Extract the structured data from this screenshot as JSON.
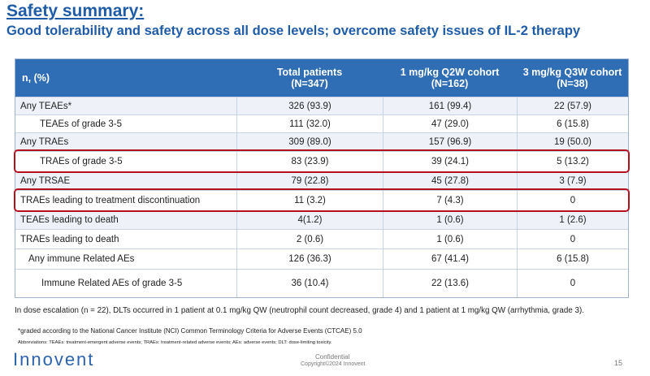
{
  "header": {
    "title": "Safety summary:",
    "subtitle": "Good tolerability and safety across all dose levels; overcome safety issues of IL-2 therapy"
  },
  "table": {
    "columns": [
      "n, (%)",
      [
        "Total patients",
        "(N=347)"
      ],
      [
        "1 mg/kg Q2W cohort",
        "(N=162)"
      ],
      [
        "3 mg/kg Q3W cohort",
        "(N=38)"
      ]
    ],
    "rows": [
      [
        "Any TEAEs*",
        "326 (93.9)",
        "161 (99.4)",
        "22 (57.9)"
      ],
      [
        "TEAEs of grade 3-5",
        "111 (32.0)",
        "47 (29.0)",
        "6 (15.8)"
      ],
      [
        "Any TRAEs",
        "309 (89.0)",
        "157 (96.9)",
        "19 (50.0)"
      ],
      [
        "TRAEs of grade 3-5",
        "83 (23.9)",
        "39 (24.1)",
        "5 (13.2)"
      ],
      [
        "Any TRSAE",
        "79 (22.8)",
        "45 (27.8)",
        "3 (7.9)"
      ],
      [
        "TRAEs leading to treatment discontinuation",
        "11 (3.2)",
        "7 (4.3)",
        "0"
      ],
      [
        "TEAEs leading to death",
        "4(1.2)",
        "1 (0.6)",
        "1 (2.6)"
      ],
      [
        "TRAEs leading to death",
        "2 (0.6)",
        "1 (0.6)",
        "0"
      ],
      [
        "Any immune Related AEs",
        "126 (36.3)",
        "67 (41.4)",
        "6 (15.8)"
      ],
      [
        "Immune Related AEs of grade 3-5",
        "36 (10.4)",
        "22 (13.6)",
        "0"
      ]
    ]
  },
  "notes": {
    "escalation": "In dose escalation (n = 22), DLTs occurred in 1 patient at 0.1 mg/kg QW (neutrophil count decreased, grade 4) and 1 patient at 1 mg/kg QW (arrhythmia, grade 3).",
    "footnote": "*graded according to the National Cancer Institute (NCI) Common Terminology Criteria for Adverse Events (CTCAE) 5.0",
    "abbreviations": "Abbreviations: TEAEs: treatment-emergent adverse events; TRAEs: treatment-related adverse events; AEs: adverse events; DLT: dose-limiting toxicity."
  },
  "footer": {
    "logo": "Innovent",
    "confidential": "Confidential",
    "copyright": "Copyright©2024  Innovent",
    "page": "15"
  }
}
